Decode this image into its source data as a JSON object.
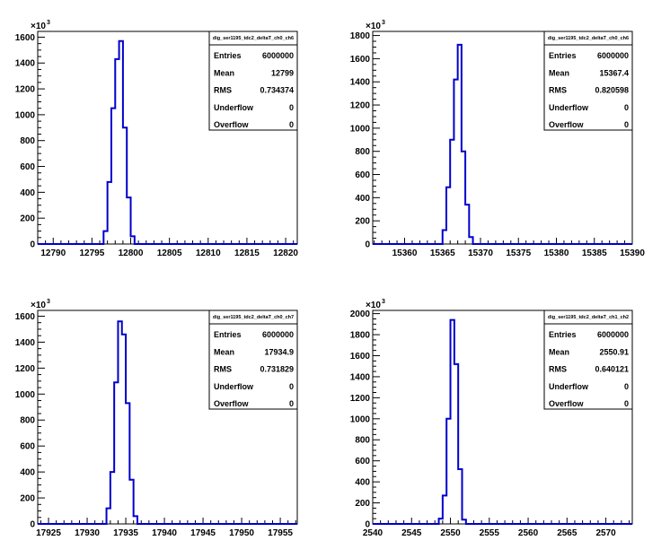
{
  "chart_data": [
    {
      "type": "histogram",
      "title": "",
      "xlim": [
        12788,
        12821.5
      ],
      "ylim": [
        0,
        1644600.0
      ],
      "xticks": [
        12790,
        12795,
        12800,
        12805,
        12810,
        12815,
        12820
      ],
      "yticks": [
        0,
        200,
        400,
        600,
        800,
        1000,
        1200,
        1400,
        1600
      ],
      "y_exponent": "×10",
      "y_exponent_power": "3",
      "bins": [
        {
          "x0": 12796.5,
          "x1": 12797.0,
          "y": 100000
        },
        {
          "x0": 12797.0,
          "x1": 12797.5,
          "y": 480000
        },
        {
          "x0": 12797.5,
          "x1": 12798.0,
          "y": 1050000
        },
        {
          "x0": 12798.0,
          "x1": 12798.5,
          "y": 1430000
        },
        {
          "x0": 12798.5,
          "x1": 12799.0,
          "y": 1570000
        },
        {
          "x0": 12799.0,
          "x1": 12799.5,
          "y": 900000
        },
        {
          "x0": 12799.5,
          "x1": 12800.0,
          "y": 360000
        },
        {
          "x0": 12800.0,
          "x1": 12800.5,
          "y": 60000
        }
      ],
      "baseline": [
        12788,
        12821.5
      ],
      "stats": {
        "name": "dig_ser1195_tdc2_deltaT_ch0_ch6",
        "rows": [
          {
            "label": "Entries",
            "value": "6000000"
          },
          {
            "label": "Mean",
            "value": "12799"
          },
          {
            "label": "RMS",
            "value": "0.734374"
          },
          {
            "label": "Underflow",
            "value": "0"
          },
          {
            "label": "Overflow",
            "value": "0"
          }
        ]
      }
    },
    {
      "type": "histogram",
      "title": "",
      "xlim": [
        15355.8,
        15390
      ],
      "ylim": [
        0,
        1835400.0
      ],
      "xticks": [
        15360,
        15365,
        15370,
        15375,
        15380,
        15385,
        15390
      ],
      "yticks": [
        0,
        200,
        400,
        600,
        800,
        1000,
        1200,
        1400,
        1600,
        1800
      ],
      "y_exponent": "×10",
      "y_exponent_power": "3",
      "bins": [
        {
          "x0": 15365.0,
          "x1": 15365.5,
          "y": 120000
        },
        {
          "x0": 15365.5,
          "x1": 15366.0,
          "y": 490000
        },
        {
          "x0": 15366.0,
          "x1": 15366.5,
          "y": 900000
        },
        {
          "x0": 15366.5,
          "x1": 15367.0,
          "y": 1420000
        },
        {
          "x0": 15367.0,
          "x1": 15367.5,
          "y": 1720000
        },
        {
          "x0": 15367.5,
          "x1": 15368.0,
          "y": 800000
        },
        {
          "x0": 15368.0,
          "x1": 15368.5,
          "y": 340000
        },
        {
          "x0": 15368.5,
          "x1": 15369.0,
          "y": 60000
        }
      ],
      "baseline": [
        15355.8,
        15390
      ],
      "stats": {
        "name": "dig_ser1195_tdc2_deltaT_ch0_ch6",
        "rows": [
          {
            "label": "Entries",
            "value": "6000000"
          },
          {
            "label": "Mean",
            "value": "15367.4"
          },
          {
            "label": "RMS",
            "value": "0.820598"
          },
          {
            "label": "Underflow",
            "value": "0"
          },
          {
            "label": "Overflow",
            "value": "0"
          }
        ]
      }
    },
    {
      "type": "histogram",
      "title": "",
      "xlim": [
        17923.6,
        17957.2
      ],
      "ylim": [
        0,
        1644600.0
      ],
      "xticks": [
        17925,
        17930,
        17935,
        17940,
        17945,
        17950,
        17955
      ],
      "yticks": [
        0,
        200,
        400,
        600,
        800,
        1000,
        1200,
        1400,
        1600
      ],
      "y_exponent": "×10",
      "y_exponent_power": "3",
      "bins": [
        {
          "x0": 17932.5,
          "x1": 17933.0,
          "y": 120000
        },
        {
          "x0": 17933.0,
          "x1": 17933.5,
          "y": 400000
        },
        {
          "x0": 17933.5,
          "x1": 17934.0,
          "y": 1090000
        },
        {
          "x0": 17934.0,
          "x1": 17934.5,
          "y": 1560000
        },
        {
          "x0": 17934.5,
          "x1": 17935.0,
          "y": 1460000
        },
        {
          "x0": 17935.0,
          "x1": 17935.5,
          "y": 930000
        },
        {
          "x0": 17935.5,
          "x1": 17936.0,
          "y": 340000
        },
        {
          "x0": 17936.0,
          "x1": 17936.5,
          "y": 60000
        }
      ],
      "baseline": [
        17923.6,
        17957.2
      ],
      "stats": {
        "name": "dig_ser1195_tdc2_deltaT_ch0_ch7",
        "rows": [
          {
            "label": "Entries",
            "value": "6000000"
          },
          {
            "label": "Mean",
            "value": "17934.9"
          },
          {
            "label": "RMS",
            "value": "0.731829"
          },
          {
            "label": "Underflow",
            "value": "0"
          },
          {
            "label": "Overflow",
            "value": "0"
          }
        ]
      }
    },
    {
      "type": "histogram",
      "title": "",
      "xlim": [
        2540,
        2573.4
      ],
      "ylim": [
        0,
        2030800.0
      ],
      "xticks": [
        2540,
        2545,
        2550,
        2555,
        2560,
        2565,
        2570
      ],
      "yticks": [
        0,
        200,
        400,
        600,
        800,
        1000,
        1200,
        1400,
        1600,
        1800,
        2000
      ],
      "y_exponent": "×10",
      "y_exponent_power": "3",
      "bins": [
        {
          "x0": 2548.5,
          "x1": 2549.0,
          "y": 50000
        },
        {
          "x0": 2549.0,
          "x1": 2549.5,
          "y": 270000
        },
        {
          "x0": 2549.5,
          "x1": 2550.0,
          "y": 1000000
        },
        {
          "x0": 2550.0,
          "x1": 2550.5,
          "y": 1940000
        },
        {
          "x0": 2550.5,
          "x1": 2551.0,
          "y": 1520000
        },
        {
          "x0": 2551.0,
          "x1": 2551.5,
          "y": 520000
        },
        {
          "x0": 2551.5,
          "x1": 2552.0,
          "y": 40000
        }
      ],
      "baseline": [
        2540,
        2573.4
      ],
      "stats": {
        "name": "dig_ser1195_tdc2_deltaT_ch1_ch2",
        "rows": [
          {
            "label": "Entries",
            "value": "6000000"
          },
          {
            "label": "Mean",
            "value": "2550.91"
          },
          {
            "label": "RMS",
            "value": "0.640121"
          },
          {
            "label": "Underflow",
            "value": "0"
          },
          {
            "label": "Overflow",
            "value": "0"
          }
        ]
      }
    }
  ],
  "colors": {
    "histogram_line": "#0000cc",
    "axis": "#000000",
    "background": "#ffffff"
  }
}
